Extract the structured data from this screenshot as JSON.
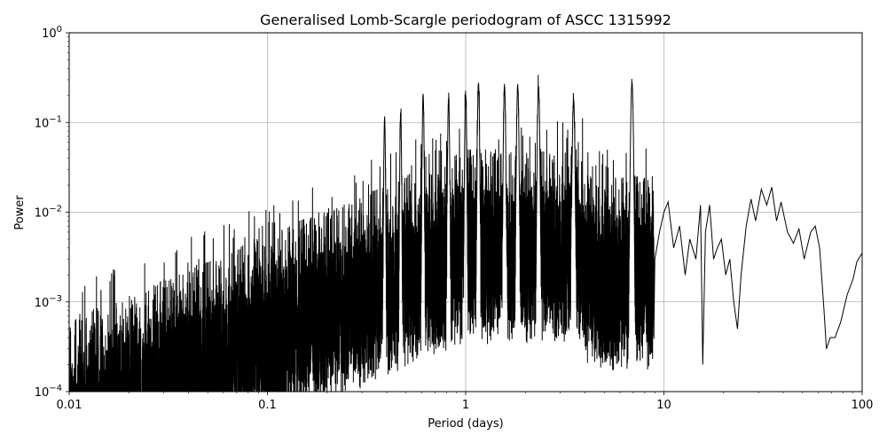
{
  "chart_data": {
    "type": "line",
    "title": "Generalised Lomb-Scargle periodogram of ASCC 1315992",
    "xlabel": "Period (days)",
    "ylabel": "Power",
    "xscale": "log",
    "yscale": "log",
    "xlim": [
      0.01,
      100
    ],
    "ylim": [
      0.0001,
      1
    ],
    "grid": true,
    "x_ticks": [
      {
        "value": 0.01,
        "label": "0.01"
      },
      {
        "value": 0.1,
        "label": "0.1"
      },
      {
        "value": 1,
        "label": "1"
      },
      {
        "value": 10,
        "label": "10"
      },
      {
        "value": 100,
        "label": "100"
      }
    ],
    "y_ticks": [
      {
        "value": 0.0001,
        "base": "10",
        "exp": "−4"
      },
      {
        "value": 0.001,
        "base": "10",
        "exp": "−3"
      },
      {
        "value": 0.01,
        "base": "10",
        "exp": "−2"
      },
      {
        "value": 0.1,
        "base": "10",
        "exp": "−1"
      },
      {
        "value": 1,
        "base": "10",
        "exp": "0"
      }
    ],
    "line_color": "#000000",
    "grid_color": "#b0b0b0",
    "peaks": [
      {
        "period": 0.39,
        "power": 0.11
      },
      {
        "period": 0.47,
        "power": 0.12
      },
      {
        "period": 0.61,
        "power": 0.2
      },
      {
        "period": 0.82,
        "power": 0.18
      },
      {
        "period": 1.0,
        "power": 0.2
      },
      {
        "period": 1.16,
        "power": 0.27
      },
      {
        "period": 1.57,
        "power": 0.25
      },
      {
        "period": 1.83,
        "power": 0.25
      },
      {
        "period": 2.33,
        "power": 0.25
      },
      {
        "period": 3.5,
        "power": 0.17
      },
      {
        "period": 6.9,
        "power": 0.27
      }
    ],
    "long_period_curve": [
      [
        9.0,
        0.003
      ],
      [
        9.5,
        0.006
      ],
      [
        10.0,
        0.01
      ],
      [
        10.5,
        0.013
      ],
      [
        11.2,
        0.004
      ],
      [
        12.0,
        0.007
      ],
      [
        12.8,
        0.002
      ],
      [
        13.5,
        0.005
      ],
      [
        14.5,
        0.003
      ],
      [
        15.3,
        0.012
      ],
      [
        15.7,
        0.0002
      ],
      [
        16.2,
        0.006
      ],
      [
        17.0,
        0.012
      ],
      [
        17.8,
        0.003
      ],
      [
        18.6,
        0.004
      ],
      [
        19.5,
        0.005
      ],
      [
        20.5,
        0.002
      ],
      [
        21.5,
        0.003
      ],
      [
        22.5,
        0.001
      ],
      [
        23.5,
        0.0005
      ],
      [
        24.5,
        0.002
      ],
      [
        26.0,
        0.007
      ],
      [
        27.5,
        0.014
      ],
      [
        29.0,
        0.008
      ],
      [
        31.0,
        0.018
      ],
      [
        33.0,
        0.012
      ],
      [
        35.0,
        0.019
      ],
      [
        37.0,
        0.008
      ],
      [
        39.0,
        0.013
      ],
      [
        42.0,
        0.006
      ],
      [
        45.0,
        0.0045
      ],
      [
        48.0,
        0.0065
      ],
      [
        51.0,
        0.003
      ],
      [
        55.0,
        0.006
      ],
      [
        58.0,
        0.007
      ],
      [
        61.0,
        0.004
      ],
      [
        64.0,
        0.0009
      ],
      [
        66.0,
        0.0003
      ],
      [
        69.0,
        0.0004
      ],
      [
        73.0,
        0.0004
      ],
      [
        78.0,
        0.0006
      ],
      [
        84.0,
        0.0012
      ],
      [
        90.0,
        0.0018
      ],
      [
        94.0,
        0.0028
      ],
      [
        100.0,
        0.0035
      ]
    ]
  }
}
